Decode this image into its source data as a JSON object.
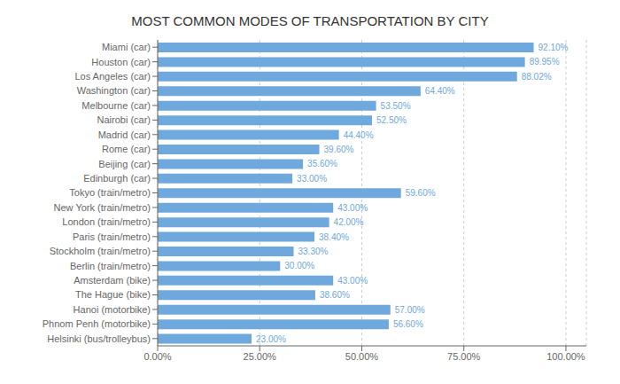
{
  "chart_data": {
    "type": "bar",
    "orientation": "horizontal",
    "title": "MOST COMMON MODES OF TRANSPORTATION BY CITY",
    "categories": [
      "Miami (car)",
      "Houston (car)",
      "Los Angeles (car)",
      "Washington (car)",
      "Melbourne (car)",
      "Nairobi (car)",
      "Madrid (car)",
      "Rome (car)",
      "Beijing (car)",
      "Edinburgh (car)",
      "Tokyo (train/metro)",
      "New York (train/metro)",
      "London (train/metro)",
      "Paris (train/metro)",
      "Stockholm (train/metro)",
      "Berlin (train/metro)",
      "Amsterdam (bike)",
      "The Hague (bike)",
      "Hanoi (motorbike)",
      "Phnom Penh (motorbike)",
      "Helsinki (bus/trolleybus)"
    ],
    "values": [
      92.1,
      89.95,
      88.02,
      64.4,
      53.5,
      52.5,
      44.4,
      39.6,
      35.6,
      33.0,
      59.6,
      43.0,
      42.0,
      38.4,
      33.3,
      30.0,
      43.0,
      38.6,
      57.0,
      56.6,
      23.0
    ],
    "value_labels": [
      "92.10%",
      "89.95%",
      "88.02%",
      "64.40%",
      "53.50%",
      "52.50%",
      "44.40%",
      "39.60%",
      "35.60%",
      "33.00%",
      "59.60%",
      "43.00%",
      "42.00%",
      "38.40%",
      "33.30%",
      "30.00%",
      "43.00%",
      "38.60%",
      "57.00%",
      "56.60%",
      "23.00%"
    ],
    "data_labels": true,
    "color": "#6fa8dc",
    "xlim": [
      0,
      105
    ],
    "xticks": [
      {
        "value": 0,
        "label": "0.00%"
      },
      {
        "value": 25,
        "label": "25.00%"
      },
      {
        "value": 50,
        "label": "50.00%"
      },
      {
        "value": 75,
        "label": "75.00%"
      },
      {
        "value": 100,
        "label": "100.00%"
      }
    ],
    "grid": true
  }
}
